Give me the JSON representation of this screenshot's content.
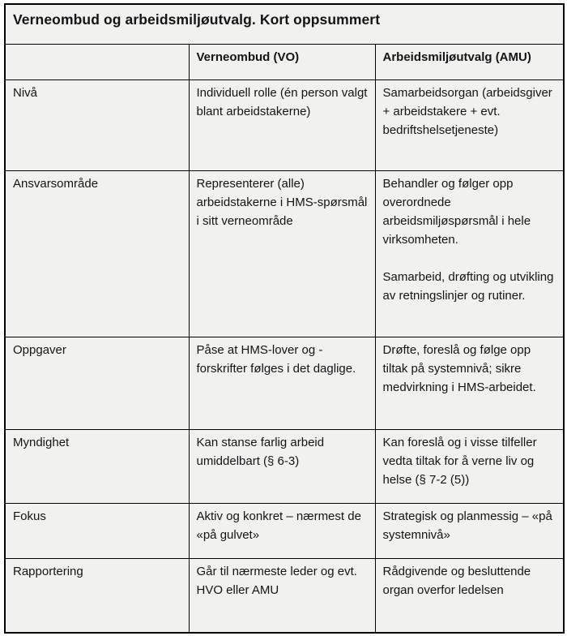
{
  "title": "Verneombud og arbeidsmiljøutvalg. Kort oppsummert",
  "columns": {
    "vo": "Verneombud (VO)",
    "amu": "Arbeidsmiljøutvalg (AMU)"
  },
  "rows": [
    {
      "label": "Nivå",
      "vo": "Individuell rolle (én person valgt blant arbeidstakerne)",
      "amu": "Samarbeidsorgan (arbeidsgiver + arbeidstakere + evt. bedriftshelsetjeneste)"
    },
    {
      "label": "Ansvarsområde",
      "vo": "Representerer (alle) arbeidstakerne i HMS-spørsmål i sitt verneområde",
      "amu": "Behandler og følger opp overordnede arbeidsmiljøspørsmål i hele virksomheten.\n\nSamarbeid, drøfting og utvikling av retningslinjer og rutiner."
    },
    {
      "label": "Oppgaver",
      "vo": "Påse at HMS-lover og -forskrifter følges i det daglige.",
      "amu": "Drøfte, foreslå og følge opp tiltak på systemnivå; sikre medvirkning i HMS-arbeidet."
    },
    {
      "label": "Myndighet",
      "vo": "Kan stanse farlig arbeid umiddelbart (§ 6-3)",
      "amu": "Kan foreslå og i visse tilfeller vedta tiltak for å verne liv og helse (§ 7-2 (5))"
    },
    {
      "label": "Fokus",
      "vo": "Aktiv og konkret – nærmest de «på gulvet»",
      "amu": "Strategisk og planmessig – «på systemnivå»"
    },
    {
      "label": "Rapportering",
      "vo": "Går til nærmeste leder og evt. HVO eller AMU",
      "amu": "Rådgivende og besluttende organ overfor ledelsen"
    }
  ],
  "colors": {
    "cell_background": "#f1f1f0",
    "border": "#000000",
    "text": "#141414",
    "page_background": "#ffffff"
  }
}
